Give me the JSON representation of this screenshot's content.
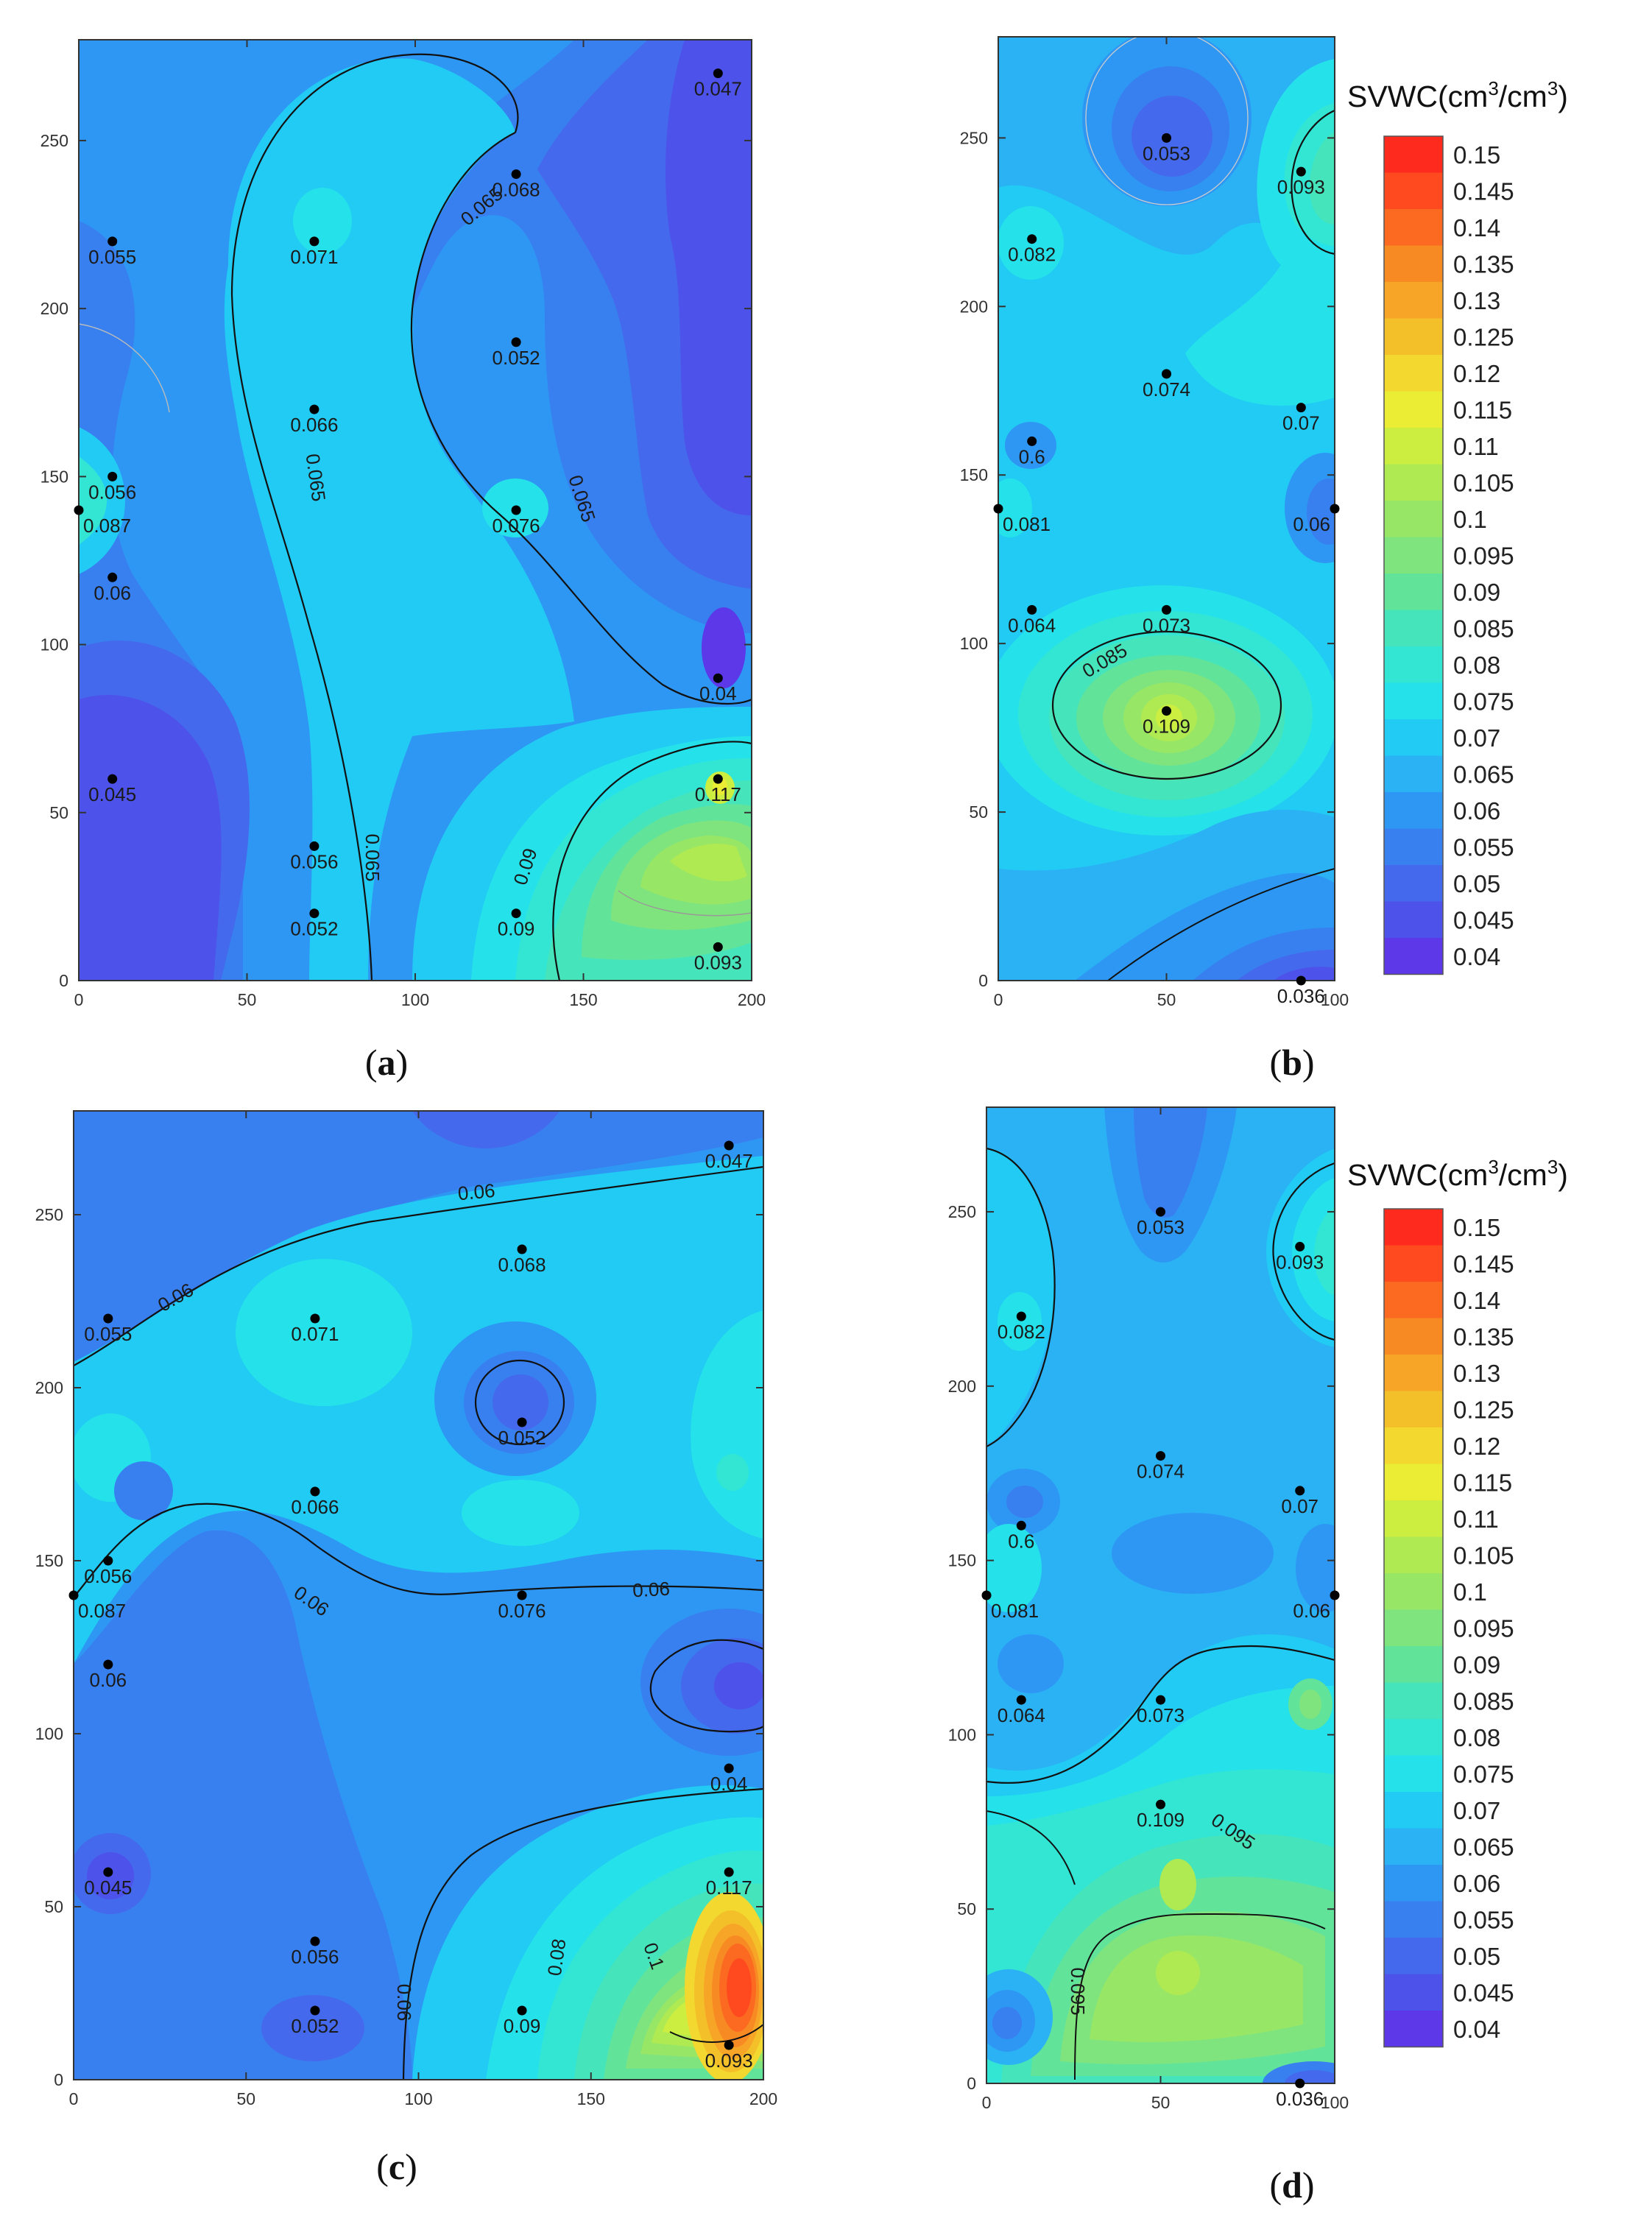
{
  "figure": {
    "colorbar_title_prefix": "SVWC(cm",
    "colorbar_title_sup1": "3",
    "colorbar_title_mid": "/cm",
    "colorbar_title_sup2": "3",
    "colorbar_title_suffix": ")",
    "colorbar_levels": [
      "0.15",
      "0.145",
      "0.14",
      "0.135",
      "0.13",
      "0.125",
      "0.12",
      "0.115",
      "0.11",
      "0.105",
      "0.1",
      "0.095",
      "0.09",
      "0.085",
      "0.08",
      "0.075",
      "0.07",
      "0.065",
      "0.06",
      "0.055",
      "0.05",
      "0.045",
      "0.04"
    ],
    "colorbar_colors": [
      "#ff2a1e",
      "#fe4a1e",
      "#fb6a20",
      "#f88a24",
      "#f7a527",
      "#f4c02a",
      "#f2d82f",
      "#eaed33",
      "#ccee40",
      "#b0ea52",
      "#98e666",
      "#80e47e",
      "#62e39a",
      "#46e4bb",
      "#33e6d4",
      "#25e2ea",
      "#21cbf3",
      "#2ab2f4",
      "#2e97f3",
      "#3880ef",
      "#4569ec",
      "#4d52ea",
      "#5c38e8"
    ]
  },
  "chart_data": [
    {
      "panel": "a",
      "label_open": "(",
      "label_letter": "a",
      "label_close": ")",
      "type": "heatmap",
      "xlim": [
        0,
        200
      ],
      "ylim": [
        0,
        280
      ],
      "xticks": [
        "0",
        "50",
        "100",
        "150",
        "200"
      ],
      "yticks": [
        "0",
        "50",
        "100",
        "150",
        "200",
        "250"
      ],
      "points": [
        {
          "x": 190,
          "y": 270,
          "label": "0.047"
        },
        {
          "x": 130,
          "y": 240,
          "label": "0.068"
        },
        {
          "x": 10,
          "y": 220,
          "label": "0.055"
        },
        {
          "x": 70,
          "y": 220,
          "label": "0.071"
        },
        {
          "x": 130,
          "y": 190,
          "label": "0.052"
        },
        {
          "x": 70,
          "y": 170,
          "label": "0.066"
        },
        {
          "x": 10,
          "y": 150,
          "label": "0.056"
        },
        {
          "x": 0,
          "y": 140,
          "label": "0.087"
        },
        {
          "x": 130,
          "y": 140,
          "label": "0.076"
        },
        {
          "x": 10,
          "y": 120,
          "label": "0.06"
        },
        {
          "x": 190,
          "y": 90,
          "label": "0.04"
        },
        {
          "x": 10,
          "y": 60,
          "label": "0.045"
        },
        {
          "x": 190,
          "y": 60,
          "label": "0.117"
        },
        {
          "x": 70,
          "y": 40,
          "label": "0.056"
        },
        {
          "x": 70,
          "y": 20,
          "label": "0.052"
        },
        {
          "x": 130,
          "y": 20,
          "label": "0.09"
        },
        {
          "x": 190,
          "y": 10,
          "label": "0.093"
        }
      ],
      "contour_labels": [
        "0.065",
        "0.065",
        "0.065",
        "0.065",
        "0.09"
      ]
    },
    {
      "panel": "b",
      "label_open": "(",
      "label_letter": "b",
      "label_close": ")",
      "type": "heatmap",
      "xlim": [
        0,
        100
      ],
      "ylim": [
        0,
        280
      ],
      "xticks": [
        "0",
        "50",
        "100"
      ],
      "yticks": [
        "0",
        "50",
        "100",
        "150",
        "200",
        "250"
      ],
      "points": [
        {
          "x": 50,
          "y": 250,
          "label": "0.053"
        },
        {
          "x": 90,
          "y": 240,
          "label": "0.093"
        },
        {
          "x": 10,
          "y": 220,
          "label": "0.082"
        },
        {
          "x": 50,
          "y": 180,
          "label": "0.074"
        },
        {
          "x": 90,
          "y": 170,
          "label": "0.07"
        },
        {
          "x": 10,
          "y": 160,
          "label": "0.6"
        },
        {
          "x": 0,
          "y": 140,
          "label": "0.081"
        },
        {
          "x": 100,
          "y": 140,
          "label": "0.06"
        },
        {
          "x": 10,
          "y": 110,
          "label": "0.064"
        },
        {
          "x": 50,
          "y": 110,
          "label": "0.073"
        },
        {
          "x": 50,
          "y": 80,
          "label": "0.109"
        },
        {
          "x": 90,
          "y": 0,
          "label": "0.036"
        }
      ],
      "contour_labels": [
        "0.085"
      ]
    },
    {
      "panel": "c",
      "label_open": "(",
      "label_letter": "c",
      "label_close": ")",
      "type": "heatmap",
      "xlim": [
        0,
        200
      ],
      "ylim": [
        0,
        280
      ],
      "xticks": [
        "0",
        "50",
        "100",
        "150",
        "200"
      ],
      "yticks": [
        "0",
        "50",
        "100",
        "150",
        "200",
        "250"
      ],
      "points": [
        {
          "x": 190,
          "y": 270,
          "label": "0.047"
        },
        {
          "x": 130,
          "y": 240,
          "label": "0.068"
        },
        {
          "x": 10,
          "y": 220,
          "label": "0.055"
        },
        {
          "x": 70,
          "y": 220,
          "label": "0.071"
        },
        {
          "x": 130,
          "y": 190,
          "label": "0.052"
        },
        {
          "x": 70,
          "y": 170,
          "label": "0.066"
        },
        {
          "x": 10,
          "y": 150,
          "label": "0.056"
        },
        {
          "x": 0,
          "y": 140,
          "label": "0.087"
        },
        {
          "x": 130,
          "y": 140,
          "label": "0.076"
        },
        {
          "x": 10,
          "y": 120,
          "label": "0.06"
        },
        {
          "x": 190,
          "y": 90,
          "label": "0.04"
        },
        {
          "x": 10,
          "y": 60,
          "label": "0.045"
        },
        {
          "x": 190,
          "y": 60,
          "label": "0.117"
        },
        {
          "x": 70,
          "y": 40,
          "label": "0.056"
        },
        {
          "x": 70,
          "y": 20,
          "label": "0.052"
        },
        {
          "x": 130,
          "y": 20,
          "label": "0.09"
        },
        {
          "x": 190,
          "y": 10,
          "label": "0.093"
        }
      ],
      "contour_labels": [
        "0.06",
        "0.06",
        "0.06",
        "0.06",
        "0.06",
        "0.08",
        "0.1"
      ]
    },
    {
      "panel": "d",
      "label_open": "(",
      "label_letter": "d",
      "label_close": ")",
      "type": "heatmap",
      "xlim": [
        0,
        100
      ],
      "ylim": [
        0,
        280
      ],
      "xticks": [
        "0",
        "50",
        "100"
      ],
      "yticks": [
        "0",
        "50",
        "100",
        "150",
        "200",
        "250"
      ],
      "points": [
        {
          "x": 50,
          "y": 250,
          "label": "0.053"
        },
        {
          "x": 90,
          "y": 240,
          "label": "0.093"
        },
        {
          "x": 10,
          "y": 220,
          "label": "0.082"
        },
        {
          "x": 50,
          "y": 180,
          "label": "0.074"
        },
        {
          "x": 90,
          "y": 170,
          "label": "0.07"
        },
        {
          "x": 10,
          "y": 160,
          "label": "0.6"
        },
        {
          "x": 0,
          "y": 140,
          "label": "0.081"
        },
        {
          "x": 100,
          "y": 140,
          "label": "0.06"
        },
        {
          "x": 10,
          "y": 110,
          "label": "0.064"
        },
        {
          "x": 50,
          "y": 110,
          "label": "0.073"
        },
        {
          "x": 50,
          "y": 80,
          "label": "0.109"
        },
        {
          "x": 90,
          "y": 0,
          "label": "0.036"
        }
      ],
      "contour_labels": [
        "0.095",
        "0.095"
      ]
    }
  ]
}
